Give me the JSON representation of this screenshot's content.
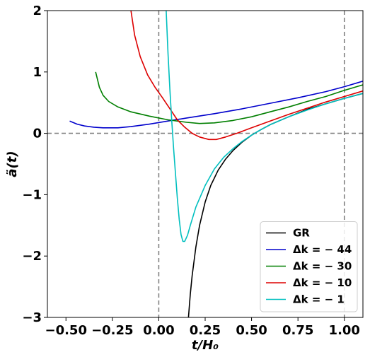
{
  "chart_data": {
    "type": "line",
    "xlabel": "t/H₀",
    "ylabel": "ä(t)",
    "xlim": [
      -0.6,
      1.1
    ],
    "ylim": [
      -3,
      2
    ],
    "x_ticks": [
      -0.5,
      -0.25,
      0.0,
      0.25,
      0.5,
      0.75,
      1.0
    ],
    "x_tick_labels": [
      "−0.50",
      "−0.25",
      "0.00",
      "0.25",
      "0.50",
      "0.75",
      "1.00"
    ],
    "y_ticks": [
      -3,
      -2,
      -1,
      0,
      1,
      2
    ],
    "y_tick_labels": [
      "−3",
      "−2",
      "−1",
      "0",
      "1",
      "2"
    ],
    "reference_lines": {
      "horizontal_y": 0,
      "vertical_x": [
        0,
        1
      ],
      "style": "dashed",
      "color": "#808080"
    },
    "legend": {
      "position": "bottom-right"
    },
    "series": [
      {
        "name": "GR",
        "color": "#000000",
        "points": [
          [
            0.16,
            -3.0
          ],
          [
            0.17,
            -2.62
          ],
          [
            0.18,
            -2.32
          ],
          [
            0.2,
            -1.85
          ],
          [
            0.22,
            -1.5
          ],
          [
            0.25,
            -1.12
          ],
          [
            0.28,
            -0.85
          ],
          [
            0.32,
            -0.6
          ],
          [
            0.36,
            -0.42
          ],
          [
            0.4,
            -0.28
          ],
          [
            0.45,
            -0.14
          ],
          [
            0.5,
            -0.03
          ],
          [
            0.55,
            0.06
          ],
          [
            0.6,
            0.14
          ],
          [
            0.7,
            0.27
          ],
          [
            0.8,
            0.39
          ],
          [
            0.9,
            0.48
          ],
          [
            1.0,
            0.57
          ],
          [
            1.1,
            0.65
          ]
        ]
      },
      {
        "name": "Δk = − 44",
        "color": "#0000cc",
        "points": [
          [
            -0.48,
            0.2
          ],
          [
            -0.44,
            0.15
          ],
          [
            -0.4,
            0.12
          ],
          [
            -0.35,
            0.1
          ],
          [
            -0.3,
            0.09
          ],
          [
            -0.22,
            0.09
          ],
          [
            -0.15,
            0.11
          ],
          [
            -0.05,
            0.15
          ],
          [
            0.05,
            0.2
          ],
          [
            0.15,
            0.25
          ],
          [
            0.3,
            0.32
          ],
          [
            0.45,
            0.4
          ],
          [
            0.6,
            0.49
          ],
          [
            0.75,
            0.58
          ],
          [
            0.9,
            0.68
          ],
          [
            1.0,
            0.76
          ],
          [
            1.1,
            0.85
          ]
        ]
      },
      {
        "name": "Δk = − 30",
        "color": "#007f00",
        "points": [
          [
            -0.34,
            1.0
          ],
          [
            -0.32,
            0.75
          ],
          [
            -0.3,
            0.62
          ],
          [
            -0.27,
            0.52
          ],
          [
            -0.22,
            0.43
          ],
          [
            -0.15,
            0.35
          ],
          [
            -0.05,
            0.28
          ],
          [
            0.05,
            0.22
          ],
          [
            0.15,
            0.18
          ],
          [
            0.22,
            0.16
          ],
          [
            0.3,
            0.17
          ],
          [
            0.4,
            0.21
          ],
          [
            0.5,
            0.27
          ],
          [
            0.6,
            0.35
          ],
          [
            0.7,
            0.43
          ],
          [
            0.8,
            0.52
          ],
          [
            0.9,
            0.6
          ],
          [
            1.0,
            0.7
          ],
          [
            1.1,
            0.79
          ]
        ]
      },
      {
        "name": "Δk = − 10",
        "color": "#dd0000",
        "points": [
          [
            -0.15,
            2.0
          ],
          [
            -0.13,
            1.6
          ],
          [
            -0.1,
            1.25
          ],
          [
            -0.06,
            0.95
          ],
          [
            -0.02,
            0.75
          ],
          [
            0.02,
            0.58
          ],
          [
            0.06,
            0.4
          ],
          [
            0.1,
            0.22
          ],
          [
            0.14,
            0.1
          ],
          [
            0.18,
            0.0
          ],
          [
            0.22,
            -0.06
          ],
          [
            0.27,
            -0.1
          ],
          [
            0.31,
            -0.1
          ],
          [
            0.36,
            -0.06
          ],
          [
            0.42,
            0.0
          ],
          [
            0.5,
            0.09
          ],
          [
            0.6,
            0.2
          ],
          [
            0.7,
            0.31
          ],
          [
            0.8,
            0.41
          ],
          [
            0.9,
            0.51
          ],
          [
            1.0,
            0.6
          ],
          [
            1.1,
            0.69
          ]
        ]
      },
      {
        "name": "Δk = − 1",
        "color": "#00bfbf",
        "points": [
          [
            0.04,
            2.0
          ],
          [
            0.05,
            1.3
          ],
          [
            0.06,
            0.7
          ],
          [
            0.07,
            0.2
          ],
          [
            0.08,
            -0.25
          ],
          [
            0.09,
            -0.65
          ],
          [
            0.1,
            -1.05
          ],
          [
            0.11,
            -1.4
          ],
          [
            0.12,
            -1.65
          ],
          [
            0.13,
            -1.76
          ],
          [
            0.14,
            -1.76
          ],
          [
            0.155,
            -1.66
          ],
          [
            0.17,
            -1.5
          ],
          [
            0.2,
            -1.2
          ],
          [
            0.25,
            -0.85
          ],
          [
            0.3,
            -0.58
          ],
          [
            0.35,
            -0.39
          ],
          [
            0.4,
            -0.25
          ],
          [
            0.45,
            -0.13
          ],
          [
            0.5,
            -0.03
          ],
          [
            0.55,
            0.06
          ],
          [
            0.6,
            0.14
          ],
          [
            0.7,
            0.27
          ],
          [
            0.8,
            0.38
          ],
          [
            0.9,
            0.48
          ],
          [
            1.0,
            0.57
          ],
          [
            1.1,
            0.65
          ]
        ]
      }
    ]
  }
}
